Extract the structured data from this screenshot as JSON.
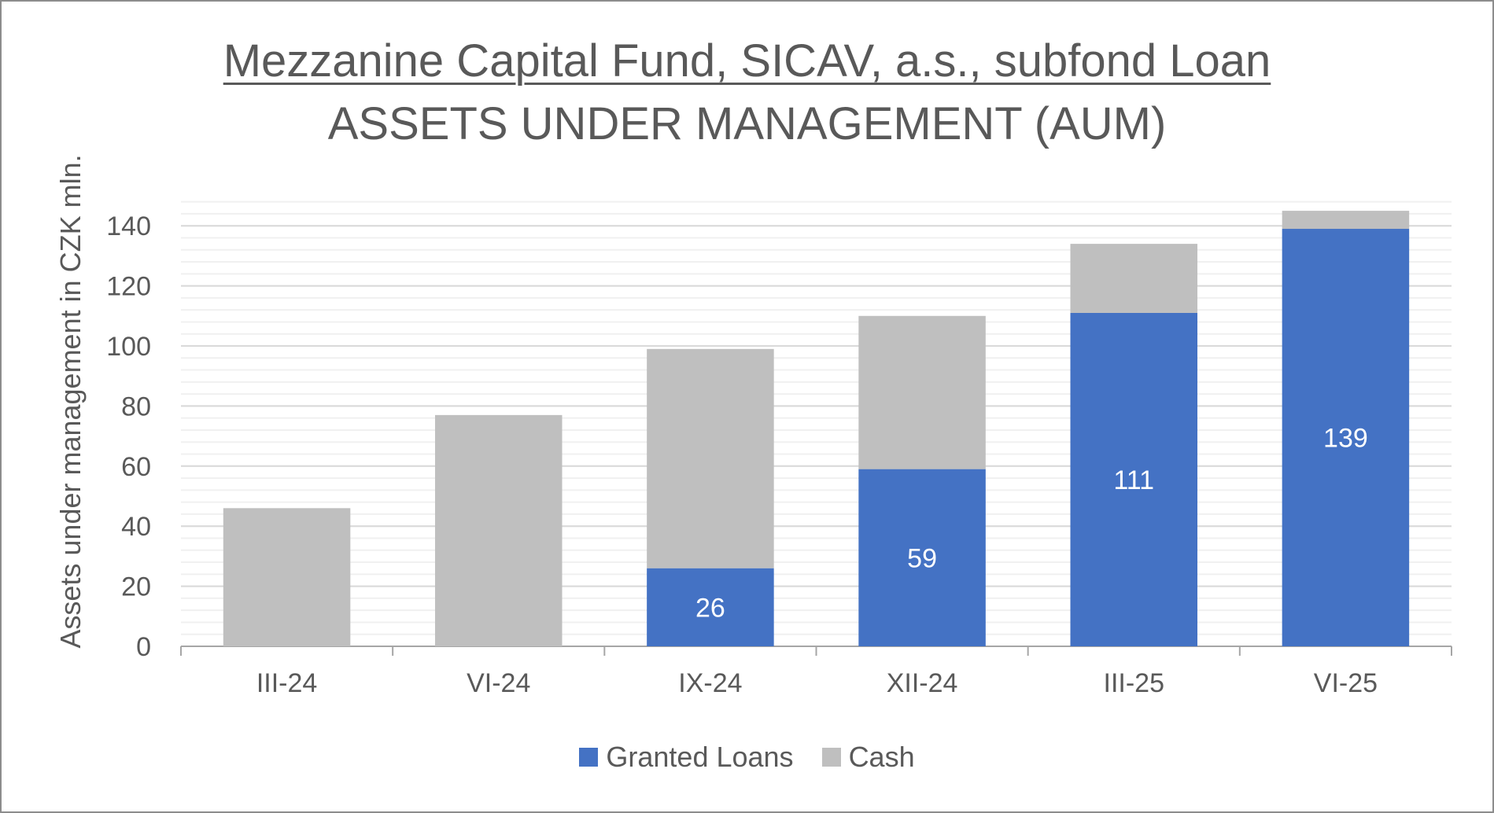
{
  "chart_data": {
    "type": "bar",
    "stacked": true,
    "title": "Mezzanine Capital Fund, SICAV, a.s., subfond Loan",
    "subtitle": "ASSETS UNDER MANAGEMENT (AUM)",
    "xlabel": "",
    "ylabel": "Assets under management in CZK mln.",
    "ylim": [
      0,
      150
    ],
    "yticks": [
      0,
      20,
      40,
      60,
      80,
      100,
      120,
      140
    ],
    "grid": true,
    "legend_position": "bottom",
    "categories": [
      "III-24",
      "VI-24",
      "IX-24",
      "XII-24",
      "III-25",
      "VI-25"
    ],
    "series": [
      {
        "name": "Granted Loans",
        "color": "#4472c4",
        "values": [
          0,
          0,
          26,
          59,
          111,
          139
        ]
      },
      {
        "name": "Cash",
        "color": "#bfbfbf",
        "values": [
          46,
          77,
          73,
          51,
          23,
          6
        ]
      }
    ],
    "data_labels": {
      "Granted Loans": [
        "",
        "",
        "26",
        "59",
        "111",
        "139"
      ]
    }
  }
}
